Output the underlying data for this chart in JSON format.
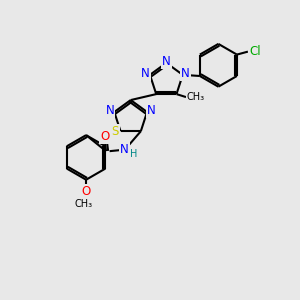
{
  "bg_color": "#e8e8e8",
  "bond_color": "#000000",
  "bond_width": 1.5,
  "atom_colors": {
    "N": "#0000ff",
    "S": "#cccc00",
    "O": "#ff0000",
    "Cl": "#00aa00",
    "C": "#000000",
    "H": "#008888"
  },
  "font_size": 8.5
}
